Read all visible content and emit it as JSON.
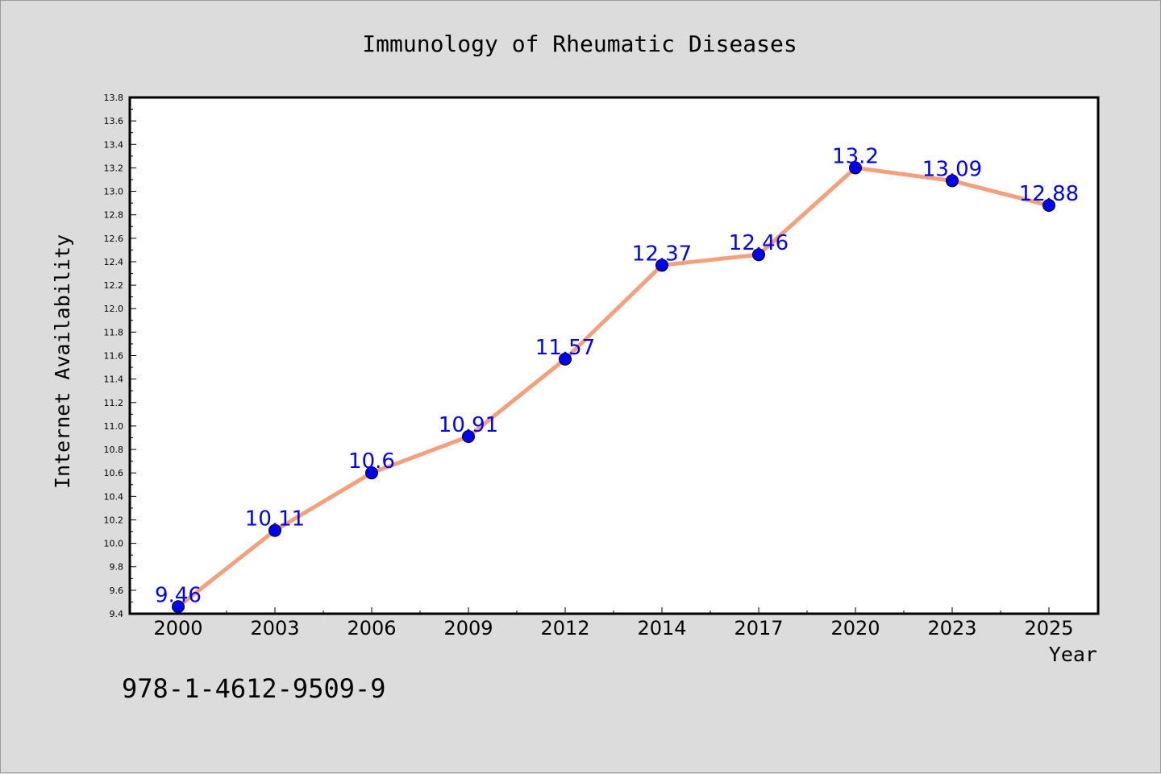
{
  "chart_data": {
    "type": "line",
    "title": "Immunology of Rheumatic Diseases",
    "xlabel": "Year",
    "ylabel": "Internet Availability",
    "categories": [
      "2000",
      "2003",
      "2006",
      "2009",
      "2012",
      "2014",
      "2017",
      "2020",
      "2023",
      "2025"
    ],
    "values": [
      9.46,
      10.11,
      10.6,
      10.91,
      11.57,
      12.37,
      12.46,
      13.2,
      13.09,
      12.88
    ],
    "data_labels": [
      "9.46",
      "10.11",
      "10.6",
      "10.91",
      "11.57",
      "12.37",
      "12.46",
      "13.2",
      "13.09",
      "12.88"
    ],
    "ylim": [
      9.4,
      13.8
    ],
    "y_ticks": [
      "9.4",
      "9.6",
      "9.8",
      "10.0",
      "10.2",
      "10.4",
      "10.6",
      "10.8",
      "11.0",
      "11.2",
      "11.4",
      "11.6",
      "11.8",
      "12.0",
      "12.2",
      "12.4",
      "12.6",
      "12.8",
      "13.0",
      "13.2",
      "13.4",
      "13.6",
      "13.8"
    ],
    "grid": false,
    "line_color": "#f4a07c",
    "marker_color": "#0000ee",
    "label_color": "#0000ee"
  },
  "footer": {
    "isbn": "978-1-4612-9509-9"
  },
  "colors": {
    "background": "#dcdcdc",
    "plot_background": "#ffffff"
  }
}
